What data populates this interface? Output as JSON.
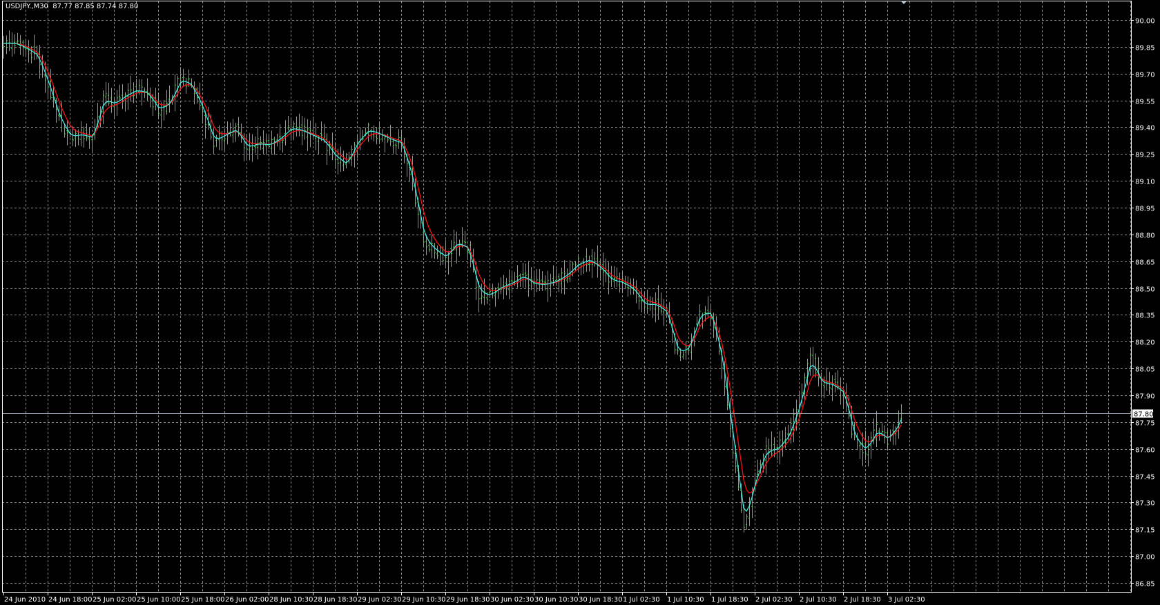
{
  "header": {
    "symbol": "USDJPY.,M30",
    "ohlc": "87.77 87.85 87.74 87.80"
  },
  "colors": {
    "background": "#000000",
    "grid": "#8a8a8a",
    "bars": "#33dd33",
    "ma_fast": "#40e8e0",
    "ma_slow": "#ff1010",
    "bid_line": "#9aa4b0",
    "frame": "#ffffff"
  },
  "chart_data": {
    "type": "ohlc-bar",
    "timeframe": "M30",
    "ylim": [
      86.85,
      90.0
    ],
    "grid": true,
    "price_ticks": [
      "90.00",
      "89.85",
      "89.70",
      "89.55",
      "89.40",
      "89.25",
      "89.10",
      "88.95",
      "88.80",
      "88.65",
      "88.50",
      "88.35",
      "88.20",
      "88.05",
      "87.90",
      "87.75",
      "87.60",
      "87.45",
      "87.30",
      "87.15",
      "87.00",
      "86.85"
    ],
    "time_ticks": [
      "24 Jun 2010",
      "24 Jun 18:00",
      "25 Jun 02:00",
      "25 Jun 10:00",
      "25 Jun 18:00",
      "26 Jun 02:00",
      "28 Jun 10:30",
      "28 Jun 18:30",
      "29 Jun 02:30",
      "29 Jun 10:30",
      "29 Jun 18:30",
      "30 Jun 02:30",
      "30 Jun 10:30",
      "30 Jun 18:30",
      "1 Jul 02:30",
      "1 Jul 10:30",
      "1 Jul 18:30",
      "2 Jul 02:30",
      "2 Jul 10:30",
      "2 Jul 18:30",
      "3 Jul 02:30"
    ],
    "closes_every_2h": [
      89.87,
      89.87,
      89.84,
      89.8,
      89.63,
      89.44,
      89.34,
      89.36,
      89.34,
      89.57,
      89.53,
      89.58,
      89.61,
      89.59,
      89.49,
      89.54,
      89.68,
      89.63,
      89.49,
      89.31,
      89.36,
      89.39,
      89.28,
      89.31,
      89.3,
      89.34,
      89.4,
      89.38,
      89.35,
      89.32,
      89.23,
      89.19,
      89.33,
      89.39,
      89.36,
      89.33,
      89.31,
      89.08,
      88.76,
      88.71,
      88.67,
      88.76,
      88.72,
      88.46,
      88.46,
      88.51,
      88.53,
      88.57,
      88.52,
      88.52,
      88.54,
      88.58,
      88.64,
      88.66,
      88.61,
      88.54,
      88.53,
      88.49,
      88.4,
      88.41,
      88.36,
      88.12,
      88.17,
      88.37,
      88.36,
      88.07,
      87.6,
      87.16,
      87.45,
      87.6,
      87.6,
      87.68,
      87.86,
      88.12,
      87.96,
      87.96,
      87.91,
      87.64,
      87.59,
      87.71,
      87.65,
      87.75
    ],
    "last_bar": {
      "open": 87.77,
      "high": 87.85,
      "low": 87.74,
      "close": 87.8
    },
    "bid_price": "87.80"
  }
}
